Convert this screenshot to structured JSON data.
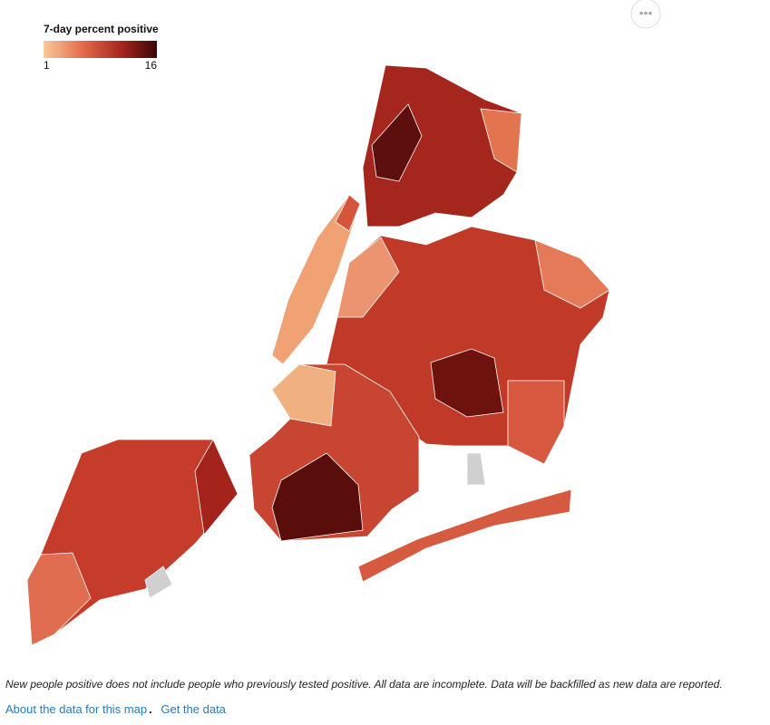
{
  "legend": {
    "title": "7-day percent positive",
    "min": 1,
    "max": 16
  },
  "footnote": "New people positive does not include people who previously tested positive. All data are incomplete. Data will be backfilled as new data are reported.",
  "links": {
    "about": "About the data for this map",
    "get": "Get the data"
  }
}
